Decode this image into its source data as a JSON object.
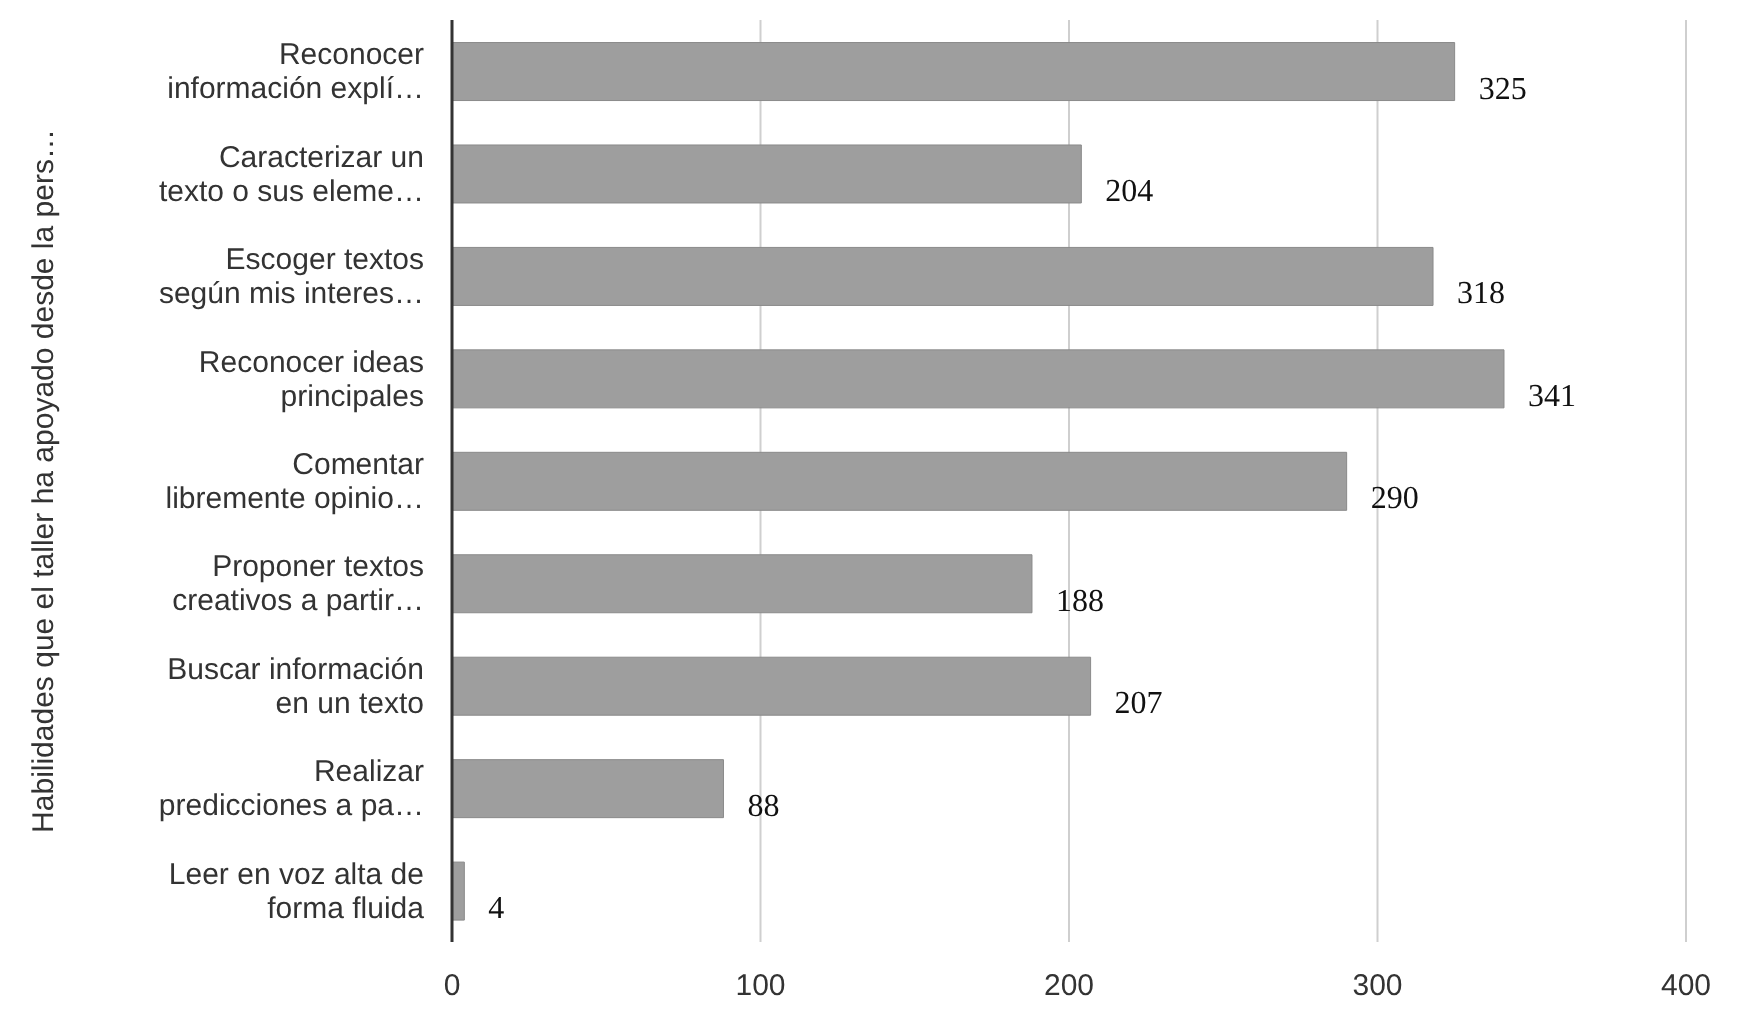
{
  "chart_data": {
    "type": "bar",
    "orientation": "horizontal",
    "ylabel": "Habilidades que el taller ha apoyado desde la pers…",
    "categories": [
      "Reconocer\ninformación explí…",
      "Caracterizar un\ntexto o sus eleme…",
      "Escoger textos\nsegún mis interes…",
      "Reconocer ideas\nprincipales",
      "Comentar\nlibremente opinio…",
      "Proponer textos\ncreativos a partir…",
      "Buscar información\nen un texto",
      "Realizar\npredicciones a pa…",
      "Leer en voz alta de\nforma fluida"
    ],
    "values": [
      325,
      204,
      318,
      341,
      290,
      188,
      207,
      88,
      4
    ],
    "color": "#9e9e9e",
    "xlim": [
      0,
      400
    ],
    "xticks": [
      0,
      100,
      200,
      300,
      400
    ],
    "grid": "x",
    "data_labels": true,
    "legend": false
  }
}
